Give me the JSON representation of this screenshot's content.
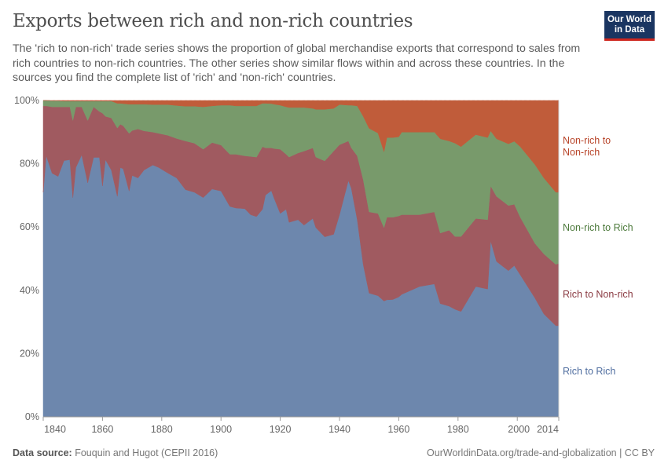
{
  "header": {
    "title": "Exports between rich and non-rich countries",
    "subtitle": "The 'rich to non-rich' trade series shows the proportion of global merchandise exports that correspond to sales from rich countries to non-rich countries. The other series show similar flows within and across these countries. In the sources you find the complete list of 'rich' and 'non-rich' countries.",
    "logo_line1": "Our World",
    "logo_line2": "in Data"
  },
  "footer": {
    "source_label": "Data source:",
    "source": "Fouquin and Hugot (CEPII 2016)",
    "url": "OurWorldinData.org/trade-and-globalization | CC BY"
  },
  "chart_data": {
    "type": "area",
    "stacked": true,
    "title": "Exports between rich and non-rich countries",
    "xlim": [
      1840,
      2014
    ],
    "ylim": [
      0,
      100
    ],
    "y_unit": "%",
    "grid": "horizontal dashed",
    "legend": "right (inline labels)",
    "x_ticks": [
      "1840",
      "1860",
      "1880",
      "1900",
      "1920",
      "1940",
      "1960",
      "1980",
      "2000",
      "2014"
    ],
    "y_ticks": [
      "0%",
      "20%",
      "40%",
      "60%",
      "80%",
      "100%"
    ],
    "x": [
      1840,
      1841,
      1843,
      1845,
      1847,
      1849,
      1850,
      1851,
      1853,
      1855,
      1857,
      1859,
      1860,
      1861,
      1863,
      1865,
      1866,
      1867,
      1869,
      1870,
      1872,
      1874,
      1877,
      1879,
      1882,
      1885,
      1888,
      1891,
      1894,
      1897,
      1900,
      1903,
      1905,
      1908,
      1910,
      1912,
      1914,
      1915,
      1917,
      1918,
      1920,
      1922,
      1923,
      1926,
      1928,
      1931,
      1932,
      1935,
      1938,
      1940,
      1943,
      1944,
      1946,
      1948,
      1950,
      1953,
      1955,
      1956,
      1958,
      1960,
      1961,
      1967,
      1972,
      1974,
      1977,
      1979,
      1981,
      1986,
      1990,
      1991,
      1993,
      1997,
      1999,
      2001,
      2006,
      2009,
      2013,
      2014
    ],
    "series": [
      {
        "name": "Rich to Rich",
        "color": "#6d87ad",
        "label_color": "#4f6d9f",
        "values": [
          71,
          82.6,
          77,
          76,
          81,
          81.3,
          69.3,
          78.8,
          82.8,
          74,
          82,
          82,
          73,
          81.3,
          78,
          69.7,
          78.8,
          78.4,
          71.4,
          76.3,
          75.5,
          78,
          79.6,
          78.8,
          77.1,
          75.5,
          71.8,
          71,
          69.3,
          72,
          71.4,
          66.5,
          66,
          65.8,
          63.9,
          63.3,
          65.6,
          70.1,
          71.5,
          68.9,
          64.3,
          65.6,
          61.5,
          62.3,
          60.6,
          62.7,
          59.8,
          56.9,
          57.7,
          63.9,
          74.7,
          72.2,
          62.3,
          48.2,
          39.1,
          38.3,
          36.6,
          37,
          37.1,
          37.9,
          38.7,
          41.2,
          42,
          35.8,
          35,
          34,
          33.3,
          41.2,
          40.4,
          55.7,
          49.1,
          46.2,
          47.8,
          44.9,
          37.5,
          32.5,
          28.8,
          28.8
        ]
      },
      {
        "name": "Rich to Non-rich",
        "color": "#a05a60",
        "label_color": "#8a3a42",
        "values": [
          27.3,
          15.7,
          21,
          22,
          17,
          16.7,
          24.4,
          19.2,
          15.2,
          19.7,
          16,
          14.5,
          23,
          13.7,
          16.5,
          21.6,
          13.7,
          13.6,
          18.2,
          14.2,
          15.5,
          12.4,
          10.4,
          10.8,
          11.9,
          12.5,
          15.4,
          15.5,
          15.3,
          14.7,
          14.5,
          16.5,
          17,
          16.7,
          18.4,
          18.8,
          19.8,
          14.9,
          13.5,
          15.9,
          20.3,
          17.4,
          20.6,
          21.1,
          23.4,
          22.3,
          22.3,
          24,
          26.3,
          22.1,
          12.5,
          12.8,
          20.2,
          26.8,
          25.7,
          26,
          23.2,
          26.1,
          26,
          25.6,
          25.2,
          22.7,
          22.8,
          22.3,
          24,
          23,
          23.7,
          21.5,
          21.9,
          17.3,
          20.6,
          20.6,
          19.4,
          18.2,
          17.3,
          19,
          19.4,
          19.7
        ]
      },
      {
        "name": "Non-rich to Rich",
        "color": "#789a6b",
        "label_color": "#4d7a3c",
        "values": [
          1.7,
          1.7,
          1.9,
          1.9,
          1.8,
          1.8,
          6.1,
          1.8,
          1.8,
          6.1,
          1.8,
          3.3,
          3.8,
          4.8,
          5.3,
          7.8,
          6.6,
          7,
          9.2,
          8.3,
          7.8,
          8.4,
          8.7,
          9.1,
          9.7,
          10.4,
          11,
          11.7,
          13.4,
          11.6,
          12.6,
          15.5,
          15.3,
          15.8,
          16,
          16.2,
          13.7,
          14.1,
          14,
          14,
          13.9,
          15,
          15.7,
          14.4,
          13.8,
          12.5,
          15.1,
          16.3,
          13.5,
          12.7,
          11.3,
          13.5,
          15.8,
          20,
          26.4,
          25.4,
          24,
          25.2,
          25.2,
          25,
          26.1,
          26.1,
          25.2,
          29.8,
          28.2,
          29.5,
          28.4,
          26.5,
          26,
          17.4,
          18.2,
          19.5,
          19.9,
          22.3,
          24.9,
          24,
          22.8,
          22.5
        ]
      },
      {
        "name": "Non-rich to Non-rich",
        "color": "#c05c3a",
        "label_color": "#b8452a",
        "values": [
          0,
          0,
          0.1,
          0.1,
          0.2,
          0.2,
          0.2,
          0.2,
          0.2,
          0.2,
          0.2,
          0.2,
          0.2,
          0.2,
          0.2,
          0.9,
          0.9,
          1,
          1.2,
          1.2,
          1.2,
          1.2,
          1.3,
          1.3,
          1.3,
          1.6,
          1.8,
          1.8,
          2,
          1.7,
          1.5,
          1.5,
          1.7,
          1.7,
          1.7,
          1.7,
          0.9,
          0.9,
          1,
          1.2,
          1.5,
          2,
          2.2,
          2.2,
          2.2,
          2.5,
          2.8,
          2.8,
          2.5,
          1.3,
          1.5,
          1.5,
          1.7,
          5,
          8.8,
          10.3,
          16.2,
          11.7,
          11.7,
          11.5,
          10,
          10,
          10,
          12.1,
          12.8,
          13.5,
          14.6,
          10.8,
          11.7,
          9.6,
          12.1,
          13.7,
          12.9,
          14.6,
          20.3,
          24.5,
          29,
          29
        ]
      }
    ]
  }
}
